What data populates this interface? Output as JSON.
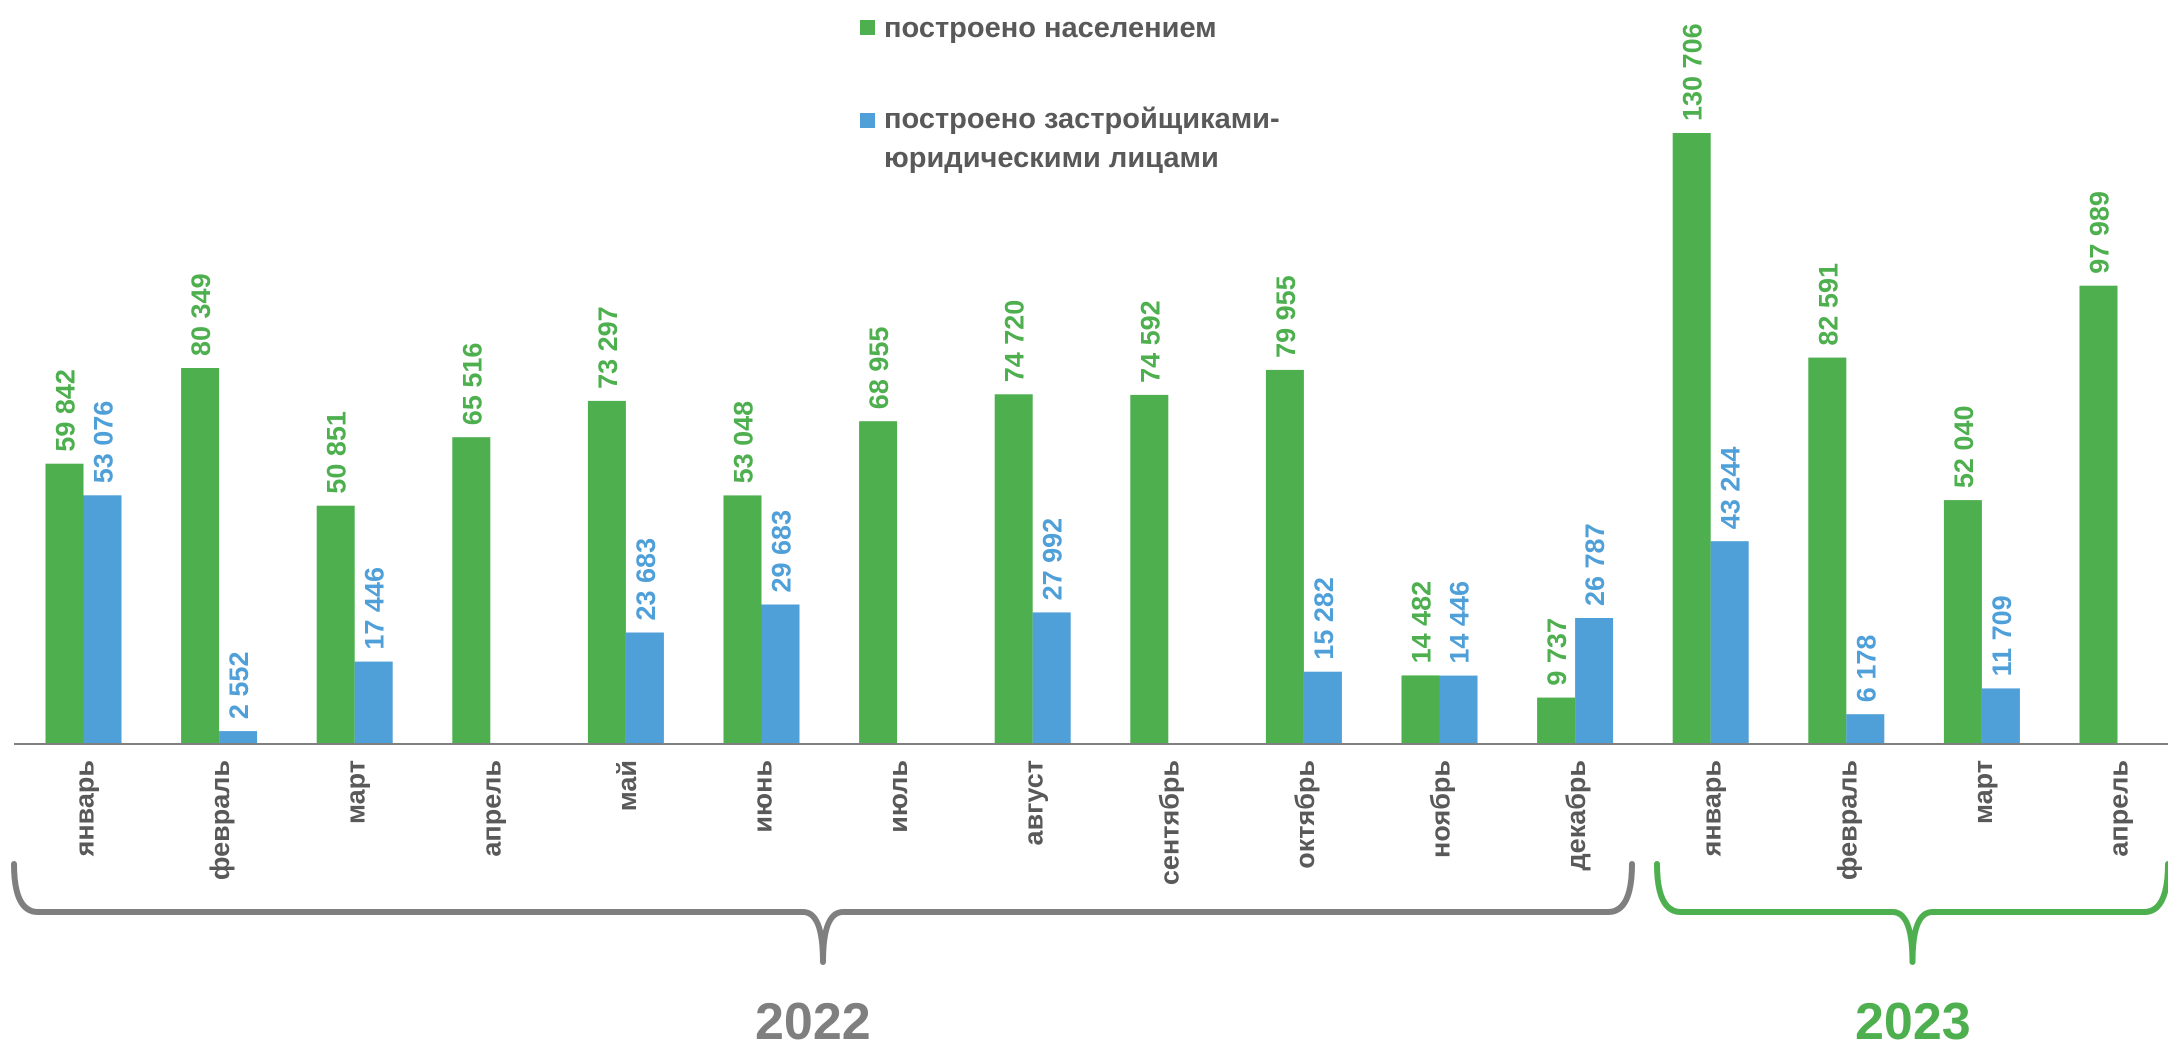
{
  "chart_data": {
    "type": "bar",
    "categories": [
      "январь",
      "февраль",
      "март",
      "апрель",
      "май",
      "июнь",
      "июль",
      "август",
      "сентябрь",
      "октябрь",
      "ноябрь",
      "декабрь",
      "январь",
      "февраль",
      "март",
      "апрель"
    ],
    "series": [
      {
        "name": "построено населением",
        "color": "#4DAF4E",
        "values": [
          59842,
          80349,
          50851,
          65516,
          73297,
          53048,
          68955,
          74720,
          74592,
          79955,
          14482,
          9737,
          130706,
          82591,
          52040,
          97989
        ],
        "labels": [
          "59 842",
          "80 349",
          "50 851",
          "65 516",
          "73 297",
          "53 048",
          "68 955",
          "74 720",
          "74 592",
          "79 955",
          "14 482",
          "9 737",
          "130 706",
          "82 591",
          "52 040",
          "97 989"
        ]
      },
      {
        "name": "построено застройщиками-юридическими лицами",
        "name_lines": [
          "построено застройщиками-",
          "юридическими лицами"
        ],
        "color": "#4F9FD9",
        "values": [
          53076,
          2552,
          17446,
          null,
          23683,
          29683,
          null,
          27992,
          null,
          15282,
          14446,
          26787,
          43244,
          6178,
          11709,
          null
        ],
        "labels": [
          "53 076",
          "2 552",
          "17 446",
          "",
          "23 683",
          "29 683",
          "",
          "27 992",
          "",
          "15 282",
          "14 446",
          "26 787",
          "43 244",
          "6 178",
          "11 709",
          ""
        ]
      }
    ],
    "groups": [
      {
        "label": "2022",
        "color": "#7F7F7F",
        "from": 0,
        "to": 11
      },
      {
        "label": "2023",
        "color": "#4DAF4E",
        "from": 12,
        "to": 15
      }
    ],
    "ylim": [
      0,
      130706
    ],
    "grid": false,
    "legend_position": "top-center"
  }
}
